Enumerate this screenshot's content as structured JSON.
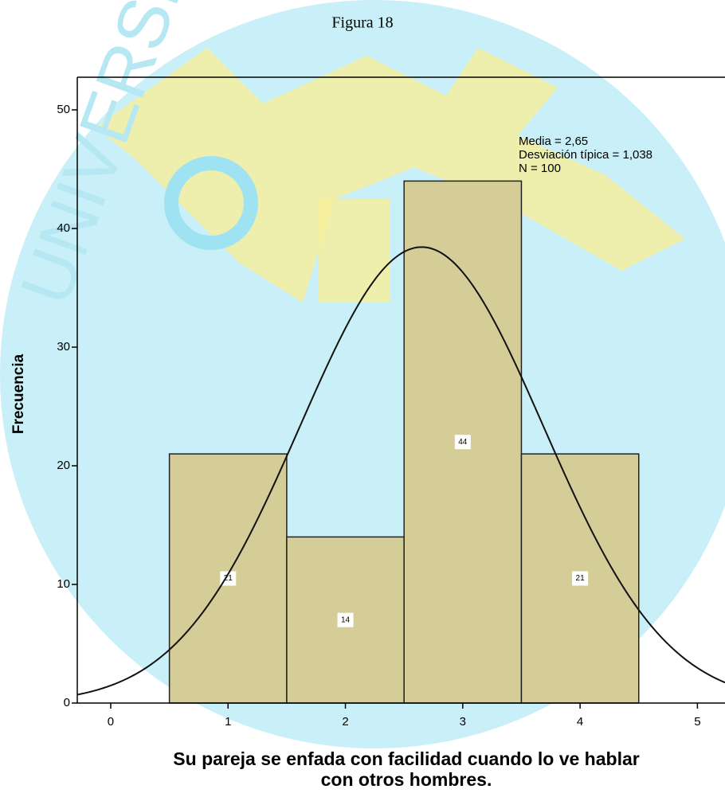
{
  "chart_data": {
    "type": "histogram",
    "title": "Figura 18",
    "xlabel": [
      "Su pareja se enfada con facilidad cuando lo ve hablar",
      "con otros hombres."
    ],
    "ylabel": "Frecuencia",
    "bins": [
      0.5,
      1.5,
      2.5,
      3.5,
      4.5
    ],
    "values": [
      21,
      14,
      44,
      21
    ],
    "color": "#d4cd98",
    "xlim": [
      -0.285,
      5.235
    ],
    "ylim": [
      0,
      52.75
    ],
    "xticks": [
      0,
      1,
      2,
      3,
      4,
      5
    ],
    "yticks": [
      0,
      10,
      20,
      30,
      40,
      50
    ],
    "stats": [
      {
        "label": "Media = 2,65",
        "value": 2.65
      },
      {
        "label": "Desviación típica = 1,038",
        "value": 1.038
      },
      {
        "label": "N = 100",
        "value": 100
      }
    ]
  }
}
